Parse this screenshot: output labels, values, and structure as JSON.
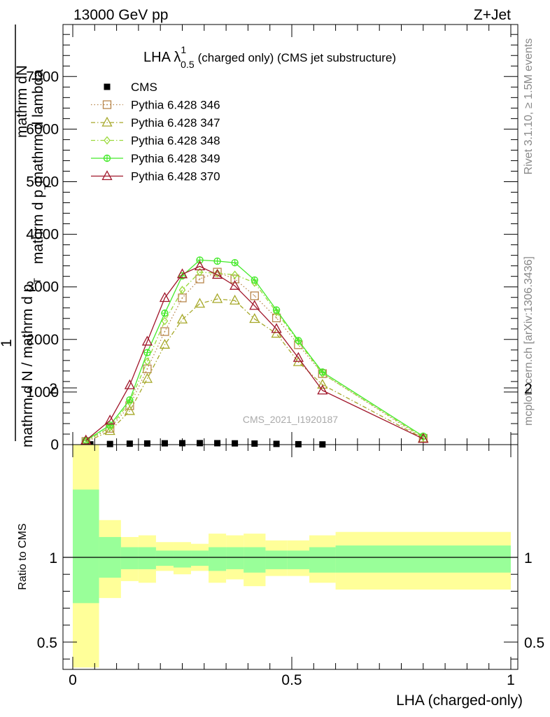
{
  "header": {
    "left": "13000 GeV pp",
    "right": "Z+Jet"
  },
  "side": {
    "rivet": "Rivet 3.1.10, ≥ 1.5M events",
    "mcplots": "mcplots.cern.ch [arXiv:1306.3436]"
  },
  "watermark": "CMS_2021_I1920187",
  "chart_data": [
    {
      "type": "line",
      "title_main": "LHA λ",
      "title_sup": "1",
      "title_sub": "0.5",
      "title_rest": "(charged only) (CMS jet substructure)",
      "ylabel_top": "mathrm d",
      "ylabel_top_N": "N",
      "ylabel_top2_lines": [
        "mathrm dN",
        "mathrm d p",
        "mathrm d lambda"
      ],
      "ylabel_one": "1",
      "ylabel_bottom": "mathrm d N / mathrm d p",
      "ylabel_T": "T",
      "ylim": [
        0,
        8000
      ],
      "yticks": [
        0,
        1000,
        2000,
        3000,
        4000,
        5000,
        6000,
        7000
      ],
      "ytick_labels": [
        "0",
        "1000",
        "2000",
        "3000",
        "4000",
        "5000",
        "6000",
        "7000"
      ],
      "xlim": [
        -0.02,
        1.0
      ],
      "series": [
        {
          "name": "CMS",
          "color": "#000000",
          "marker": "square",
          "style": "none",
          "x": [
            0.04,
            0.085,
            0.13,
            0.17,
            0.21,
            0.25,
            0.29,
            0.33,
            0.37,
            0.415,
            0.465,
            0.515,
            0.57
          ],
          "y": [
            5,
            12,
            18,
            22,
            25,
            27,
            28,
            27,
            24,
            20,
            14,
            8,
            4
          ]
        },
        {
          "name": "Pythia 6.428 346",
          "color": "#b8864b",
          "marker": "square-open",
          "style": "dotted",
          "x": [
            0.03,
            0.085,
            0.13,
            0.17,
            0.21,
            0.25,
            0.29,
            0.33,
            0.37,
            0.415,
            0.465,
            0.515,
            0.57,
            0.8
          ],
          "y": [
            60,
            310,
            740,
            1440,
            2150,
            2790,
            3150,
            3280,
            3150,
            2830,
            2410,
            1900,
            1350,
            120
          ]
        },
        {
          "name": "Pythia 6.428 347",
          "color": "#a6a829",
          "marker": "triangle-open",
          "style": "dashdot",
          "x": [
            0.03,
            0.085,
            0.13,
            0.17,
            0.21,
            0.25,
            0.29,
            0.33,
            0.37,
            0.415,
            0.465,
            0.515,
            0.57,
            0.8
          ],
          "y": [
            50,
            260,
            640,
            1250,
            1900,
            2380,
            2680,
            2770,
            2740,
            2390,
            2110,
            1570,
            1140,
            120
          ]
        },
        {
          "name": "Pythia 6.428 348",
          "color": "#9ad93a",
          "marker": "diamond-open",
          "style": "dashdot",
          "x": [
            0.03,
            0.085,
            0.13,
            0.17,
            0.21,
            0.25,
            0.29,
            0.33,
            0.37,
            0.415,
            0.465,
            0.515,
            0.57,
            0.8
          ],
          "y": [
            70,
            330,
            810,
            1580,
            2350,
            2940,
            3280,
            3260,
            3230,
            3080,
            2520,
            1960,
            1350,
            140
          ]
        },
        {
          "name": "Pythia 6.428 349",
          "color": "#44ea2a",
          "marker": "circle-cross",
          "style": "solid",
          "x": [
            0.03,
            0.085,
            0.13,
            0.17,
            0.21,
            0.25,
            0.29,
            0.33,
            0.37,
            0.415,
            0.465,
            0.515,
            0.57,
            0.8
          ],
          "y": [
            80,
            370,
            850,
            1750,
            2500,
            3210,
            3510,
            3490,
            3460,
            3130,
            2560,
            1980,
            1380,
            160
          ]
        },
        {
          "name": "Pythia 6.428 370",
          "color": "#a0162a",
          "marker": "triangle-open",
          "style": "solid",
          "x": [
            0.03,
            0.085,
            0.13,
            0.17,
            0.21,
            0.25,
            0.29,
            0.33,
            0.37,
            0.415,
            0.465,
            0.515,
            0.57,
            0.8
          ],
          "y": [
            80,
            460,
            1130,
            1960,
            2790,
            3240,
            3390,
            3230,
            3020,
            2640,
            2200,
            1650,
            1030,
            110
          ]
        }
      ]
    },
    {
      "type": "area",
      "ylabel": "Ratio to CMS",
      "xlabel": "LHA (charged-only)",
      "ylim": [
        0.35,
        2.25
      ],
      "yticks": [
        0.5,
        1,
        2
      ],
      "ytick_labels": [
        "0.5",
        "1",
        "2"
      ],
      "xlim": [
        -0.02,
        1.0
      ],
      "xticks": [
        0,
        0.5,
        1
      ],
      "xtick_labels": [
        "0",
        "0.5",
        "1"
      ],
      "bands": {
        "edges": [
          0.0,
          0.06,
          0.11,
          0.15,
          0.19,
          0.23,
          0.27,
          0.31,
          0.35,
          0.39,
          0.44,
          0.49,
          0.54,
          0.6,
          1.0
        ],
        "yellow": {
          "color": "#ffff99",
          "lo": [
            0.35,
            0.76,
            0.86,
            0.85,
            0.92,
            0.9,
            0.92,
            0.85,
            0.87,
            0.83,
            0.89,
            0.89,
            0.85,
            0.81
          ],
          "hi": [
            1.7,
            1.22,
            1.12,
            1.13,
            1.09,
            1.09,
            1.08,
            1.14,
            1.13,
            1.14,
            1.1,
            1.1,
            1.13,
            1.15
          ]
        },
        "green": {
          "color": "#99ff99",
          "lo": [
            0.73,
            0.88,
            0.93,
            0.93,
            0.95,
            0.94,
            0.95,
            0.92,
            0.93,
            0.91,
            0.93,
            0.93,
            0.91,
            0.91
          ],
          "hi": [
            1.4,
            1.12,
            1.06,
            1.06,
            1.04,
            1.04,
            1.04,
            1.06,
            1.06,
            1.06,
            1.04,
            1.04,
            1.06,
            1.07
          ]
        }
      }
    }
  ]
}
